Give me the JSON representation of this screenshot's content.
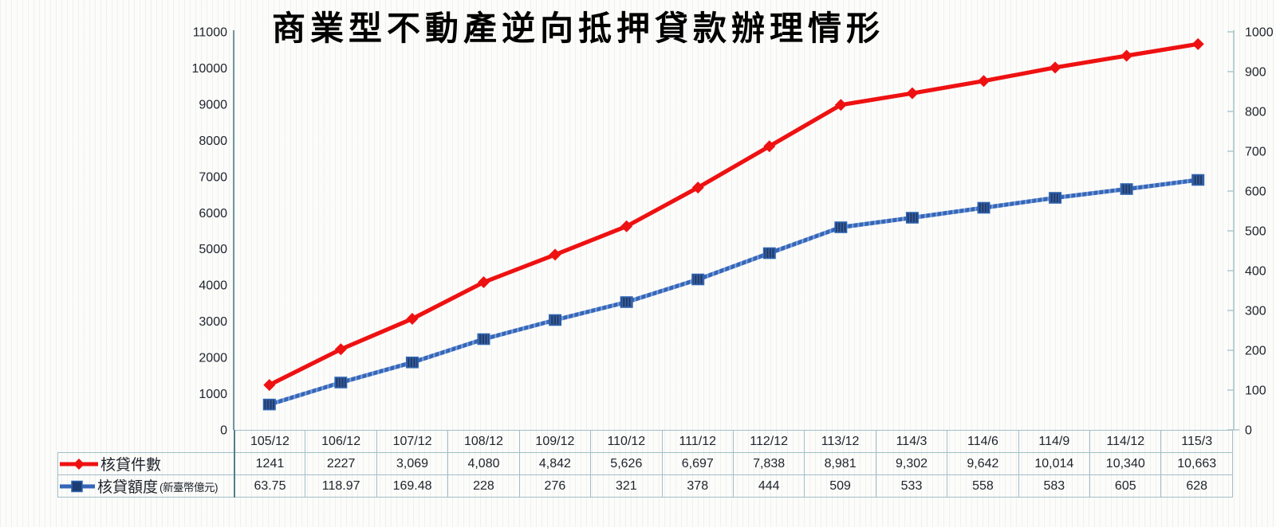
{
  "title": "商業型不動產逆向抵押貸款辦理情形",
  "colors": {
    "background": "#FCFCFA",
    "pinstripe": "#ECECEA",
    "axis_dark": "#4E7F8D",
    "axis_light": "#A7C6CE",
    "table_border": "#A2BEC9",
    "text": "#20252D",
    "series1_red": "#EE1111",
    "series2_blue": "#3566B8",
    "series2_blue_stripe": "#7DA2DC",
    "series2_marker_navy": "#1D3C74",
    "series2_marker_stripe": "#45689F",
    "series2_marker_border": "#2E64B0"
  },
  "chart_data": {
    "type": "line",
    "title": "商業型不動產逆向抵押貸款辦理情形",
    "categories": [
      "105/12",
      "106/12",
      "107/12",
      "108/12",
      "109/12",
      "110/12",
      "111/12",
      "112/12",
      "113/12",
      "114/3",
      "114/6",
      "114/9",
      "114/12",
      "115/3"
    ],
    "series": [
      {
        "name": "核貸件數",
        "name_paren": "",
        "axis": "left",
        "marker": "diamond",
        "values": [
          1241,
          2227,
          3069,
          4080,
          4842,
          5626,
          6697,
          7838,
          8981,
          9302,
          9642,
          10014,
          10340,
          10663
        ],
        "display": [
          "1241",
          "2227",
          "3,069",
          "4,080",
          "4,842",
          "5,626",
          "6,697",
          "7,838",
          "8,981",
          "9,302",
          "9,642",
          "10,014",
          "10,340",
          "10,663"
        ]
      },
      {
        "name": "核貸額度",
        "name_paren": " (新臺幣億元)",
        "axis": "right",
        "marker": "square",
        "values": [
          63.75,
          118.97,
          169.48,
          228,
          276,
          321,
          378,
          444,
          509,
          533,
          558,
          583,
          605,
          628
        ],
        "display": [
          "63.75",
          "118.97",
          "169.48",
          "228",
          "276",
          "321",
          "378",
          "444",
          "509",
          "533",
          "558",
          "583",
          "605",
          "628"
        ]
      }
    ],
    "left_axis": {
      "min": 0,
      "max": 11000,
      "step": 1000
    },
    "right_axis": {
      "min": 0,
      "max": 1000,
      "step": 100
    },
    "grid": false,
    "legend_position": "table-left"
  }
}
